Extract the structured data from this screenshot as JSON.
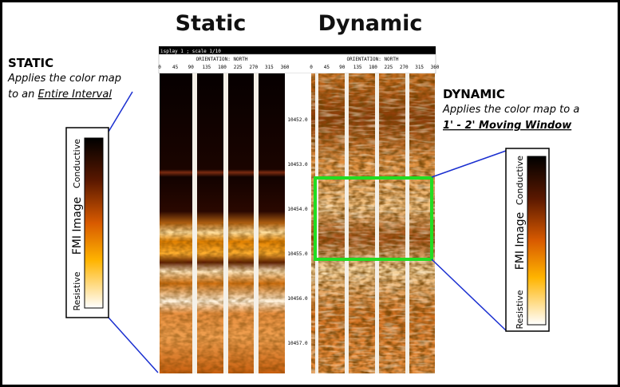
{
  "titles": {
    "static": "Static",
    "dynamic": "Dynamic"
  },
  "static_note": {
    "heading": "STATIC",
    "line1": "Applies  the color map",
    "line2_prefix": "to an ",
    "line2_emphasis": "Entire Interval"
  },
  "dynamic_note": {
    "heading": "DYNAMIC",
    "line1": "Applies  the  color map to a",
    "line2": "1' - 2' Moving Window"
  },
  "color_scale": {
    "title": "FMI Image",
    "top": "Conductive",
    "bottom": "Resistive"
  },
  "log": {
    "header": "isplay 1 ; scale 1/10",
    "orientation": "ORIENTATION: NORTH",
    "azimuths": [
      "0",
      "45",
      "90",
      "135",
      "180",
      "225",
      "270",
      "315",
      "360"
    ],
    "depths": [
      "10452.0",
      "10453.0",
      "10454.0",
      "10455.0",
      "10456.0",
      "10457.0"
    ]
  }
}
